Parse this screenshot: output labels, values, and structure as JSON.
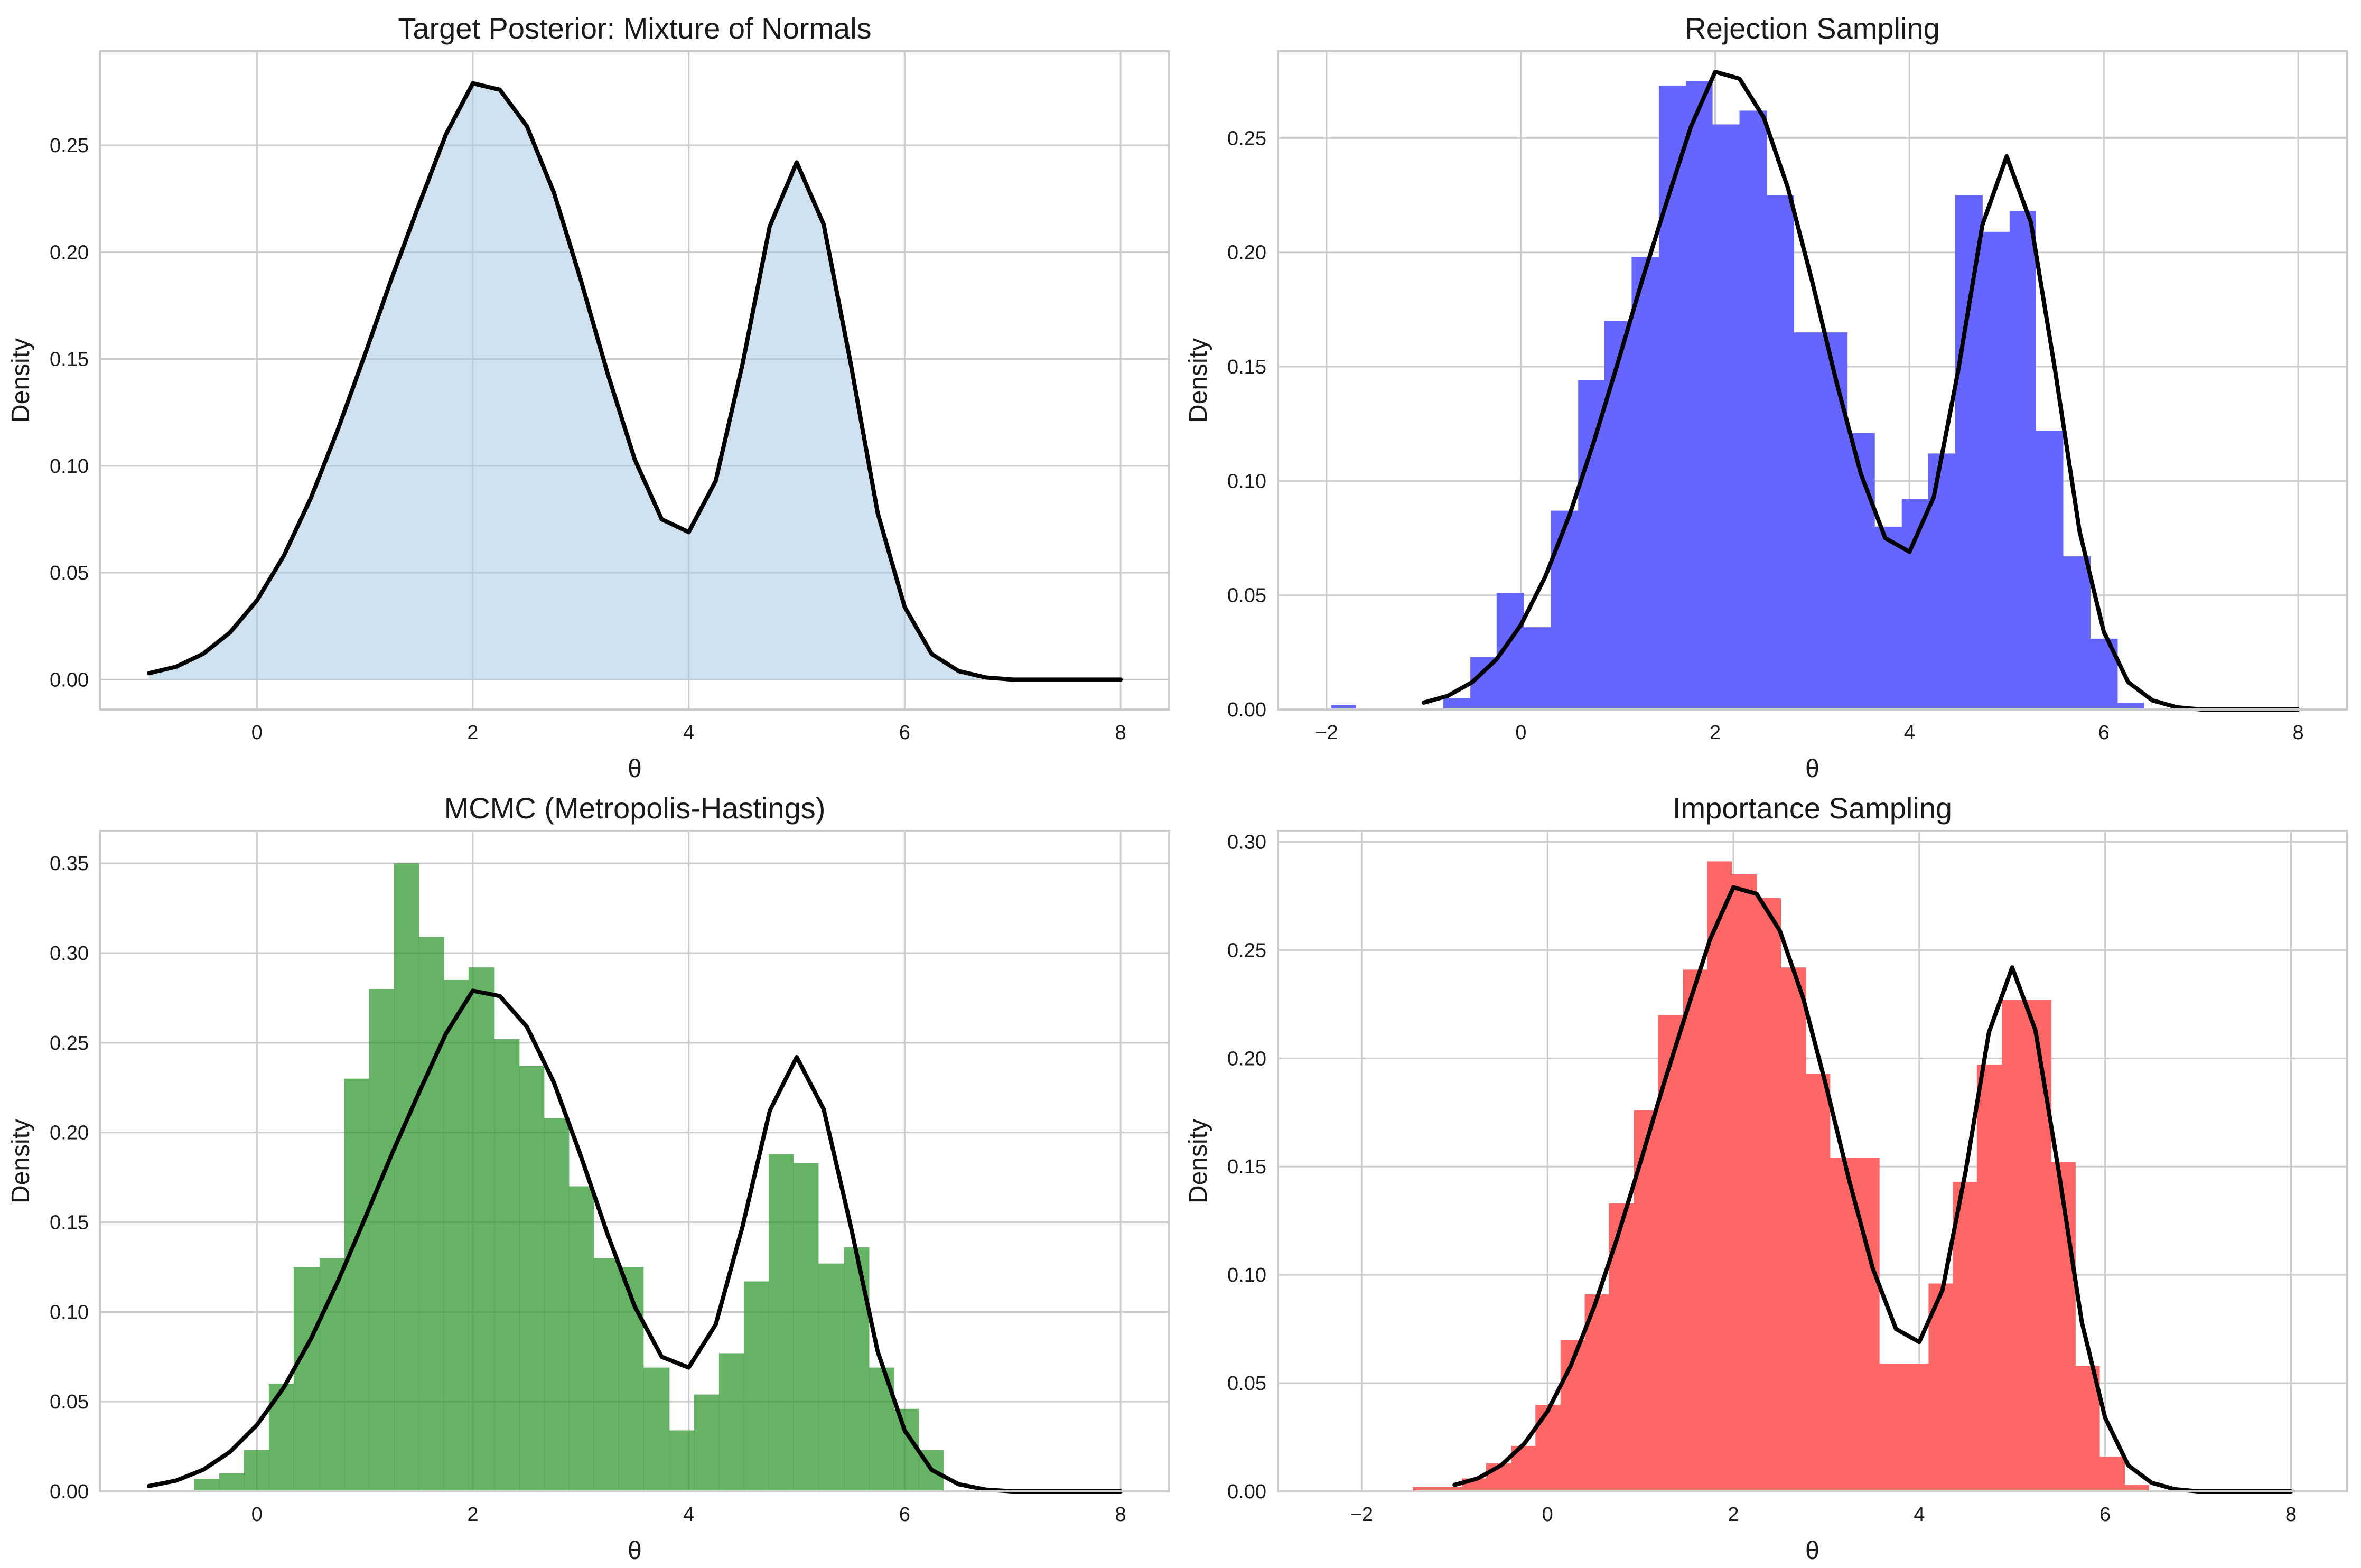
{
  "figure": {
    "background": "#ffffff",
    "grid_color": "#cccccc",
    "curve_color": "#000000"
  },
  "chart_data": [
    {
      "type": "area",
      "title": "Target Posterior: Mixture of Normals",
      "xlabel": "θ",
      "ylabel": "Density",
      "xlim": [
        -1.45,
        8.45
      ],
      "ylim": [
        -0.014,
        0.294
      ],
      "xticks": [
        0,
        2,
        4,
        6,
        8
      ],
      "yticks": [
        0.0,
        0.05,
        0.1,
        0.15,
        0.2,
        0.25
      ],
      "ytick_format": 2,
      "grid": true,
      "fill_color": "#a8c8e0",
      "curve": {
        "x": [
          -1.0,
          -0.75,
          -0.5,
          -0.25,
          0.0,
          0.25,
          0.5,
          0.75,
          1.0,
          1.25,
          1.5,
          1.75,
          2.0,
          2.25,
          2.5,
          2.75,
          3.0,
          3.25,
          3.5,
          3.75,
          4.0,
          4.25,
          4.5,
          4.75,
          5.0,
          5.25,
          5.5,
          5.75,
          6.0,
          6.25,
          6.5,
          6.75,
          7.0,
          7.5,
          8.0
        ],
        "y": [
          0.003,
          0.006,
          0.012,
          0.022,
          0.037,
          0.058,
          0.085,
          0.117,
          0.152,
          0.188,
          0.222,
          0.255,
          0.279,
          0.276,
          0.259,
          0.228,
          0.187,
          0.143,
          0.103,
          0.075,
          0.069,
          0.093,
          0.148,
          0.212,
          0.242,
          0.213,
          0.148,
          0.078,
          0.034,
          0.012,
          0.004,
          0.001,
          0.0,
          0.0,
          0.0
        ]
      }
    },
    {
      "type": "bar",
      "title": "Rejection Sampling",
      "xlabel": "θ",
      "ylabel": "Density",
      "xlim": [
        -2.5,
        8.5
      ],
      "ylim": [
        0.0,
        0.288
      ],
      "xticks": [
        -2,
        0,
        2,
        4,
        6,
        8
      ],
      "yticks": [
        0.0,
        0.05,
        0.1,
        0.15,
        0.2,
        0.25
      ],
      "ytick_format": 2,
      "grid": true,
      "bar_color": "#6666ff",
      "bins": [
        {
          "x0": -1.95,
          "x1": -1.7,
          "value": 0.002
        },
        {
          "x0": -0.8,
          "x1": -0.52,
          "value": 0.005
        },
        {
          "x0": -0.52,
          "x1": -0.25,
          "value": 0.023
        },
        {
          "x0": -0.25,
          "x1": 0.03,
          "value": 0.051
        },
        {
          "x0": 0.03,
          "x1": 0.31,
          "value": 0.036
        },
        {
          "x0": 0.31,
          "x1": 0.59,
          "value": 0.087
        },
        {
          "x0": 0.59,
          "x1": 0.86,
          "value": 0.144
        },
        {
          "x0": 0.86,
          "x1": 1.14,
          "value": 0.17
        },
        {
          "x0": 1.14,
          "x1": 1.42,
          "value": 0.198
        },
        {
          "x0": 1.42,
          "x1": 1.7,
          "value": 0.273
        },
        {
          "x0": 1.7,
          "x1": 1.97,
          "value": 0.275
        },
        {
          "x0": 1.97,
          "x1": 2.25,
          "value": 0.256
        },
        {
          "x0": 2.25,
          "x1": 2.53,
          "value": 0.262
        },
        {
          "x0": 2.53,
          "x1": 2.81,
          "value": 0.225
        },
        {
          "x0": 2.81,
          "x1": 3.08,
          "value": 0.165
        },
        {
          "x0": 3.08,
          "x1": 3.36,
          "value": 0.165
        },
        {
          "x0": 3.36,
          "x1": 3.64,
          "value": 0.121
        },
        {
          "x0": 3.64,
          "x1": 3.92,
          "value": 0.08
        },
        {
          "x0": 3.92,
          "x1": 4.19,
          "value": 0.092
        },
        {
          "x0": 4.19,
          "x1": 4.47,
          "value": 0.112
        },
        {
          "x0": 4.47,
          "x1": 4.75,
          "value": 0.225
        },
        {
          "x0": 4.75,
          "x1": 5.03,
          "value": 0.209
        },
        {
          "x0": 5.03,
          "x1": 5.3,
          "value": 0.218
        },
        {
          "x0": 5.3,
          "x1": 5.58,
          "value": 0.122
        },
        {
          "x0": 5.58,
          "x1": 5.86,
          "value": 0.067
        },
        {
          "x0": 5.86,
          "x1": 6.14,
          "value": 0.031
        },
        {
          "x0": 6.14,
          "x1": 6.41,
          "value": 0.003
        }
      ]
    },
    {
      "type": "bar",
      "title": "MCMC (Metropolis-Hastings)",
      "xlabel": "θ",
      "ylabel": "Density",
      "xlim": [
        -1.45,
        8.45
      ],
      "ylim": [
        0.0,
        0.368
      ],
      "xticks": [
        0,
        2,
        4,
        6,
        8
      ],
      "yticks": [
        0.0,
        0.05,
        0.1,
        0.15,
        0.2,
        0.25,
        0.3,
        0.35
      ],
      "ytick_format": 2,
      "grid": true,
      "bar_color": "#339933",
      "bins": [
        {
          "x0": -0.58,
          "x1": -0.35,
          "value": 0.007
        },
        {
          "x0": -0.35,
          "x1": -0.12,
          "value": 0.01
        },
        {
          "x0": -0.12,
          "x1": 0.11,
          "value": 0.023
        },
        {
          "x0": 0.11,
          "x1": 0.34,
          "value": 0.06
        },
        {
          "x0": 0.34,
          "x1": 0.58,
          "value": 0.125
        },
        {
          "x0": 0.58,
          "x1": 0.81,
          "value": 0.13
        },
        {
          "x0": 0.81,
          "x1": 1.04,
          "value": 0.23
        },
        {
          "x0": 1.04,
          "x1": 1.27,
          "value": 0.28
        },
        {
          "x0": 1.27,
          "x1": 1.5,
          "value": 0.35
        },
        {
          "x0": 1.5,
          "x1": 1.73,
          "value": 0.309
        },
        {
          "x0": 1.73,
          "x1": 1.96,
          "value": 0.285
        },
        {
          "x0": 1.96,
          "x1": 2.2,
          "value": 0.292
        },
        {
          "x0": 2.2,
          "x1": 2.43,
          "value": 0.252
        },
        {
          "x0": 2.43,
          "x1": 2.66,
          "value": 0.237
        },
        {
          "x0": 2.66,
          "x1": 2.89,
          "value": 0.208
        },
        {
          "x0": 2.89,
          "x1": 3.12,
          "value": 0.17
        },
        {
          "x0": 3.12,
          "x1": 3.35,
          "value": 0.13
        },
        {
          "x0": 3.35,
          "x1": 3.58,
          "value": 0.125
        },
        {
          "x0": 3.58,
          "x1": 3.82,
          "value": 0.069
        },
        {
          "x0": 3.82,
          "x1": 4.05,
          "value": 0.034
        },
        {
          "x0": 4.05,
          "x1": 4.28,
          "value": 0.054
        },
        {
          "x0": 4.28,
          "x1": 4.51,
          "value": 0.077
        },
        {
          "x0": 4.51,
          "x1": 4.74,
          "value": 0.117
        },
        {
          "x0": 4.74,
          "x1": 4.97,
          "value": 0.188
        },
        {
          "x0": 4.97,
          "x1": 5.2,
          "value": 0.183
        },
        {
          "x0": 5.2,
          "x1": 5.44,
          "value": 0.127
        },
        {
          "x0": 5.44,
          "x1": 5.67,
          "value": 0.136
        },
        {
          "x0": 5.67,
          "x1": 5.9,
          "value": 0.069
        },
        {
          "x0": 5.9,
          "x1": 6.13,
          "value": 0.046
        },
        {
          "x0": 6.13,
          "x1": 6.36,
          "value": 0.023
        }
      ]
    },
    {
      "type": "bar",
      "title": "Importance Sampling",
      "xlabel": "θ",
      "ylabel": "Density",
      "xlim": [
        -2.9,
        8.6
      ],
      "ylim": [
        0.0,
        0.305
      ],
      "xticks": [
        -2,
        0,
        2,
        4,
        6,
        8
      ],
      "yticks": [
        0.0,
        0.05,
        0.1,
        0.15,
        0.2,
        0.25,
        0.3
      ],
      "ytick_format": 2,
      "grid": true,
      "bar_color": "#ff6666",
      "bins": [
        {
          "x0": -1.45,
          "x1": -1.18,
          "value": 0.002
        },
        {
          "x0": -1.18,
          "x1": -0.92,
          "value": 0.002
        },
        {
          "x0": -0.92,
          "x1": -0.66,
          "value": 0.006
        },
        {
          "x0": -0.66,
          "x1": -0.39,
          "value": 0.013
        },
        {
          "x0": -0.39,
          "x1": -0.13,
          "value": 0.021
        },
        {
          "x0": -0.13,
          "x1": 0.14,
          "value": 0.04
        },
        {
          "x0": 0.14,
          "x1": 0.4,
          "value": 0.07
        },
        {
          "x0": 0.4,
          "x1": 0.66,
          "value": 0.091
        },
        {
          "x0": 0.66,
          "x1": 0.93,
          "value": 0.133
        },
        {
          "x0": 0.93,
          "x1": 1.19,
          "value": 0.176
        },
        {
          "x0": 1.19,
          "x1": 1.46,
          "value": 0.22
        },
        {
          "x0": 1.46,
          "x1": 1.72,
          "value": 0.241
        },
        {
          "x0": 1.72,
          "x1": 1.98,
          "value": 0.291
        },
        {
          "x0": 1.98,
          "x1": 2.25,
          "value": 0.285
        },
        {
          "x0": 2.25,
          "x1": 2.51,
          "value": 0.274
        },
        {
          "x0": 2.51,
          "x1": 2.78,
          "value": 0.242
        },
        {
          "x0": 2.78,
          "x1": 3.04,
          "value": 0.193
        },
        {
          "x0": 3.04,
          "x1": 3.3,
          "value": 0.154
        },
        {
          "x0": 3.3,
          "x1": 3.57,
          "value": 0.154
        },
        {
          "x0": 3.57,
          "x1": 3.83,
          "value": 0.059
        },
        {
          "x0": 3.83,
          "x1": 4.1,
          "value": 0.059
        },
        {
          "x0": 4.1,
          "x1": 4.36,
          "value": 0.096
        },
        {
          "x0": 4.36,
          "x1": 4.62,
          "value": 0.143
        },
        {
          "x0": 4.62,
          "x1": 4.89,
          "value": 0.197
        },
        {
          "x0": 4.89,
          "x1": 5.15,
          "value": 0.227
        },
        {
          "x0": 5.15,
          "x1": 5.42,
          "value": 0.227
        },
        {
          "x0": 5.42,
          "x1": 5.68,
          "value": 0.152
        },
        {
          "x0": 5.68,
          "x1": 5.94,
          "value": 0.058
        },
        {
          "x0": 5.94,
          "x1": 6.21,
          "value": 0.016
        },
        {
          "x0": 6.21,
          "x1": 6.47,
          "value": 0.003
        }
      ]
    }
  ]
}
